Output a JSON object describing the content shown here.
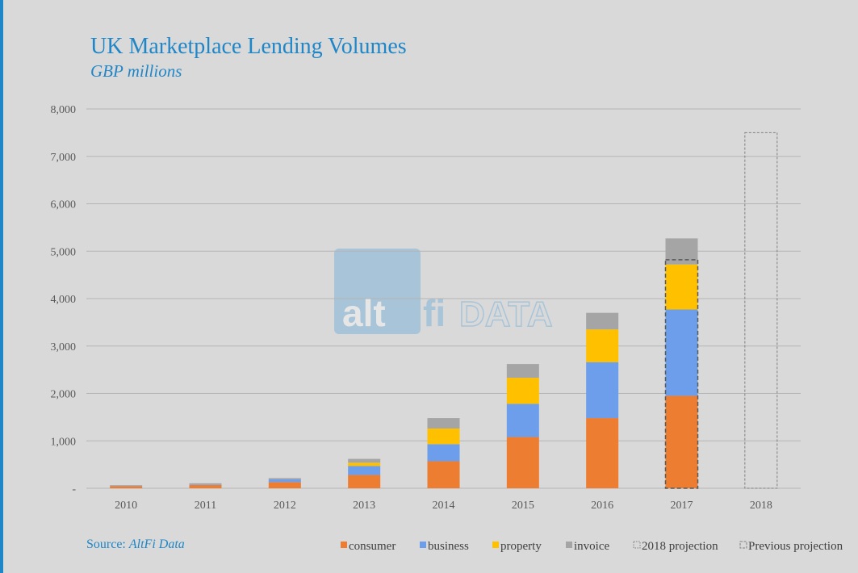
{
  "title": "UK Marketplace Lending Volumes",
  "subtitle": "GBP millions",
  "source": {
    "prefix": "Source: ",
    "name": "AltFi Data"
  },
  "watermark": {
    "part1": "alt",
    "part2": "fi",
    "part3": "DATA"
  },
  "colors": {
    "consumer": "#ed7d31",
    "business": "#6d9eeb",
    "property": "#ffc000",
    "invoice": "#a5a5a5",
    "accent": "#1f86c8"
  },
  "chart_data": {
    "type": "bar",
    "stacked": true,
    "categories": [
      "2010",
      "2011",
      "2012",
      "2013",
      "2014",
      "2015",
      "2016",
      "2017",
      "2018"
    ],
    "series": [
      {
        "name": "consumer",
        "values": [
          45,
          70,
          130,
          280,
          570,
          1080,
          1480,
          1950,
          0
        ]
      },
      {
        "name": "business",
        "values": [
          5,
          10,
          60,
          190,
          360,
          700,
          1180,
          1820,
          0
        ]
      },
      {
        "name": "property",
        "values": [
          0,
          0,
          0,
          70,
          330,
          550,
          690,
          950,
          0
        ]
      },
      {
        "name": "invoice",
        "values": [
          15,
          25,
          25,
          80,
          220,
          290,
          350,
          550,
          0
        ]
      }
    ],
    "projection_2018": 7500,
    "previous_projection_2017": 4820,
    "ylim": [
      0,
      8000
    ],
    "yticks": [
      0,
      1000,
      2000,
      3000,
      4000,
      5000,
      6000,
      7000,
      8000
    ],
    "ytick_labels": [
      "-",
      "1,000",
      "2,000",
      "3,000",
      "4,000",
      "5,000",
      "6,000",
      "7,000",
      "8,000"
    ],
    "grid": true,
    "legend_position": "bottom-right",
    "legend": [
      "consumer",
      "business",
      "property",
      "invoice",
      "2018 projection",
      "Previous projection"
    ]
  }
}
